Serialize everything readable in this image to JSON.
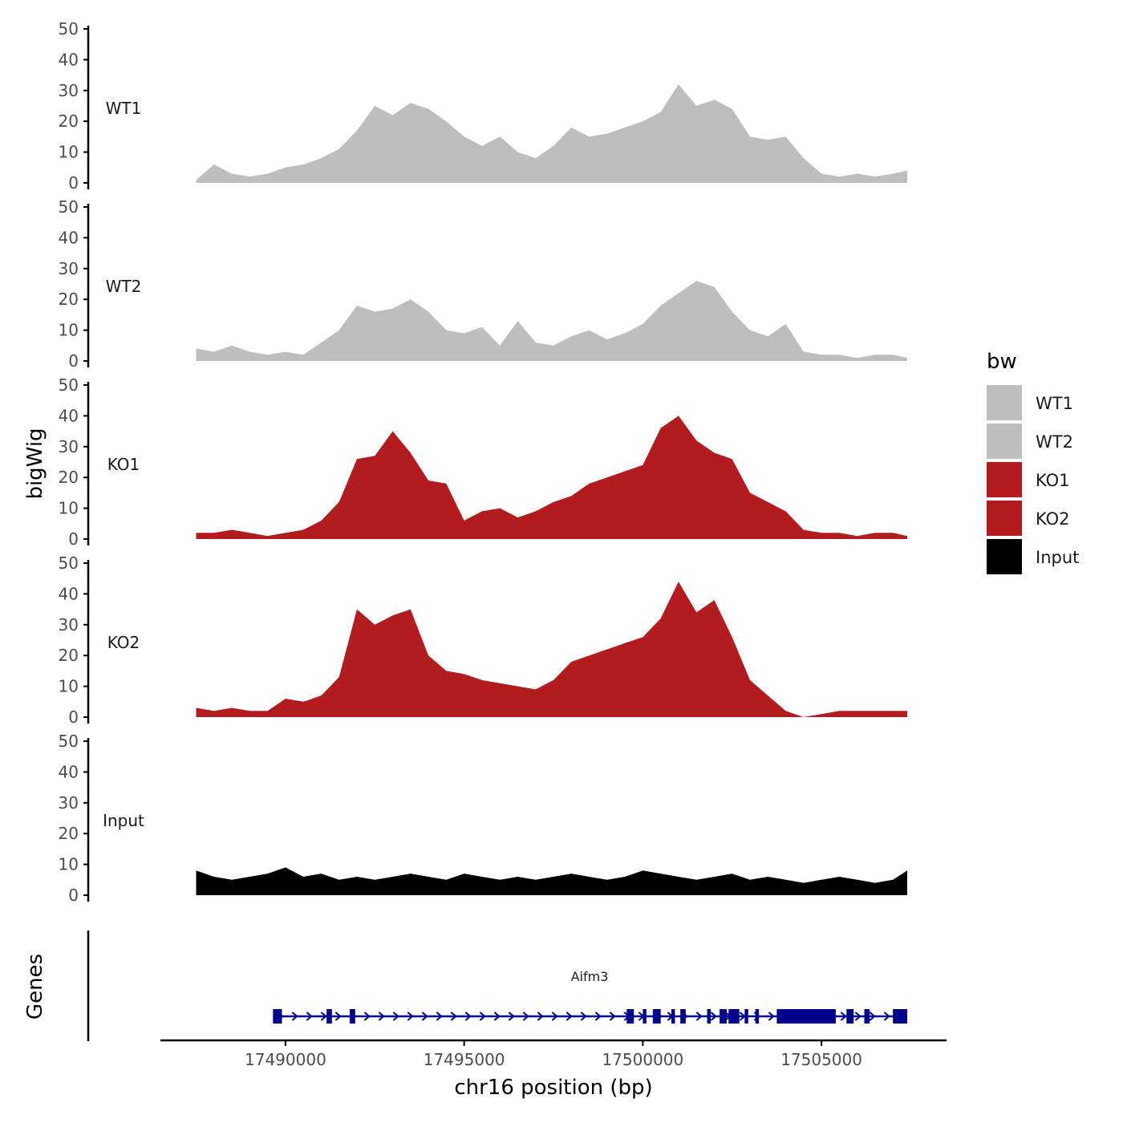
{
  "chart_data": {
    "type": "area",
    "title": "",
    "xlabel": "chr16 position (bp)",
    "ylabel": "bigWig",
    "genes_label": "Genes",
    "xlim": [
      17486500,
      17508500
    ],
    "ylim": [
      0,
      50
    ],
    "x_ticks": [
      17490000,
      17495000,
      17500000,
      17505000
    ],
    "x_tick_labels": [
      "17490000",
      "17495000",
      "17500000",
      "17505000"
    ],
    "y_ticks": [
      0,
      10,
      20,
      30,
      40,
      50
    ],
    "y_tick_labels": [
      "0",
      "10",
      "20",
      "30",
      "40",
      "50"
    ],
    "grid": false,
    "legend": {
      "title": "bw",
      "position": "right",
      "entries": [
        {
          "label": "WT1",
          "color": "#bebebe"
        },
        {
          "label": "WT2",
          "color": "#bebebe"
        },
        {
          "label": "KO1",
          "color": "#b21c1f"
        },
        {
          "label": "KO2",
          "color": "#b21c1f"
        },
        {
          "label": "Input",
          "color": "#000000"
        }
      ]
    },
    "x": [
      17487500,
      17488000,
      17488500,
      17489000,
      17489500,
      17490000,
      17490500,
      17491000,
      17491500,
      17492000,
      17492500,
      17493000,
      17493500,
      17494000,
      17494500,
      17495000,
      17495500,
      17496000,
      17496500,
      17497000,
      17497500,
      17498000,
      17498500,
      17499000,
      17499500,
      17500000,
      17500500,
      17501000,
      17501500,
      17502000,
      17502500,
      17503000,
      17503500,
      17504000,
      17504500,
      17505000,
      17505500,
      17506000,
      17506500,
      17507000,
      17507400
    ],
    "series": [
      {
        "name": "WT1",
        "color": "#bebebe",
        "values": [
          1,
          6,
          3,
          2,
          3,
          5,
          6,
          8,
          11,
          17,
          25,
          22,
          26,
          24,
          20,
          15,
          12,
          15,
          10,
          8,
          12,
          18,
          15,
          16,
          18,
          20,
          23,
          32,
          25,
          27,
          24,
          15,
          14,
          15,
          8,
          3,
          2,
          3,
          2,
          3,
          4
        ]
      },
      {
        "name": "WT2",
        "color": "#bebebe",
        "values": [
          4,
          3,
          5,
          3,
          2,
          3,
          2,
          6,
          10,
          18,
          16,
          17,
          20,
          16,
          10,
          9,
          11,
          5,
          13,
          6,
          5,
          8,
          10,
          7,
          9,
          12,
          18,
          22,
          26,
          24,
          16,
          10,
          8,
          12,
          3,
          2,
          2,
          1,
          2,
          2,
          1
        ]
      },
      {
        "name": "KO1",
        "color": "#b21c1f",
        "values": [
          2,
          2,
          3,
          2,
          1,
          2,
          3,
          6,
          12,
          26,
          27,
          35,
          28,
          19,
          18,
          6,
          9,
          10,
          7,
          9,
          12,
          14,
          18,
          20,
          22,
          24,
          36,
          40,
          32,
          28,
          26,
          15,
          12,
          9,
          3,
          2,
          2,
          1,
          2,
          2,
          1
        ]
      },
      {
        "name": "KO2",
        "color": "#b21c1f",
        "values": [
          3,
          2,
          3,
          2,
          2,
          6,
          5,
          7,
          13,
          35,
          30,
          33,
          35,
          20,
          15,
          14,
          12,
          11,
          10,
          9,
          12,
          18,
          20,
          22,
          24,
          26,
          32,
          44,
          34,
          38,
          26,
          12,
          7,
          2,
          0,
          1,
          2,
          2,
          2,
          2,
          2
        ]
      },
      {
        "name": "Input",
        "color": "#000000",
        "values": [
          8,
          6,
          5,
          6,
          7,
          9,
          6,
          7,
          5,
          6,
          5,
          6,
          7,
          6,
          5,
          7,
          6,
          5,
          6,
          5,
          6,
          7,
          6,
          5,
          6,
          8,
          7,
          6,
          5,
          6,
          7,
          5,
          6,
          5,
          4,
          5,
          6,
          5,
          4,
          5,
          8
        ]
      }
    ],
    "track_labels": [
      "WT1",
      "WT2",
      "KO1",
      "KO2",
      "Input"
    ],
    "gene": {
      "name": "Aifm3",
      "color": "#00008b",
      "start": 17489650,
      "end": 17507400,
      "strand": "+",
      "exons": [
        [
          17489650,
          17489900
        ],
        [
          17491150,
          17491300
        ],
        [
          17491800,
          17491950
        ],
        [
          17499550,
          17499750
        ],
        [
          17500000,
          17500100
        ],
        [
          17500280,
          17500500
        ],
        [
          17500800,
          17500900
        ],
        [
          17501050,
          17501200
        ],
        [
          17501800,
          17501900
        ],
        [
          17502150,
          17502350
        ],
        [
          17502400,
          17502700
        ],
        [
          17502850,
          17502950
        ],
        [
          17503150,
          17503250
        ],
        [
          17503750,
          17505400
        ],
        [
          17505700,
          17505900
        ],
        [
          17506200,
          17506350
        ],
        [
          17507000,
          17507400
        ]
      ]
    }
  }
}
